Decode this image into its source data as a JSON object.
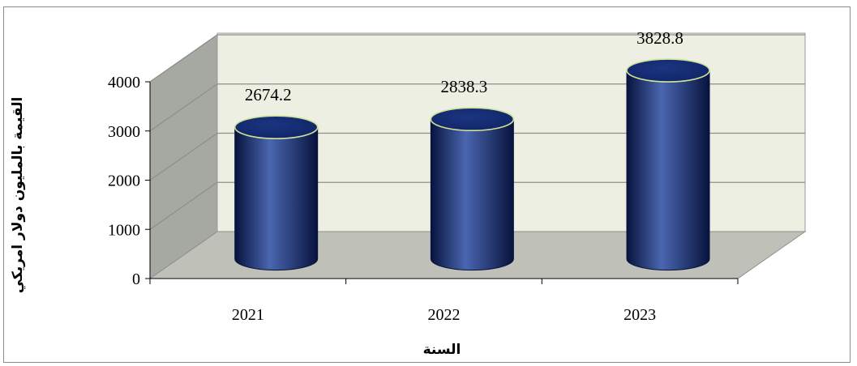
{
  "chart_data": {
    "type": "bar",
    "style": "3d-cylinder",
    "categories": [
      "2021",
      "2022",
      "2023"
    ],
    "values": [
      2674.2,
      2838.3,
      3828.8
    ],
    "data_labels": [
      "2674.2",
      "2838.3",
      "3828.8"
    ],
    "xlabel": "السنة",
    "ylabel": "القيمة بالمليون دولار امريكي",
    "ylim": [
      0,
      4000
    ],
    "yticks": [
      "0",
      "1000",
      "2000",
      "3000",
      "4000"
    ],
    "grid": true,
    "legend": "none",
    "colors": {
      "bar": "#0f2466",
      "bar_highlight": "#4a66b0",
      "bar_shadow": "#07133d",
      "bar_top_edge": "#cfe09a",
      "back_wall": "#ecefe2",
      "side_wall": "#a6a8a2",
      "floor": "#bfc1b9",
      "gridline": "#8e9090"
    }
  }
}
